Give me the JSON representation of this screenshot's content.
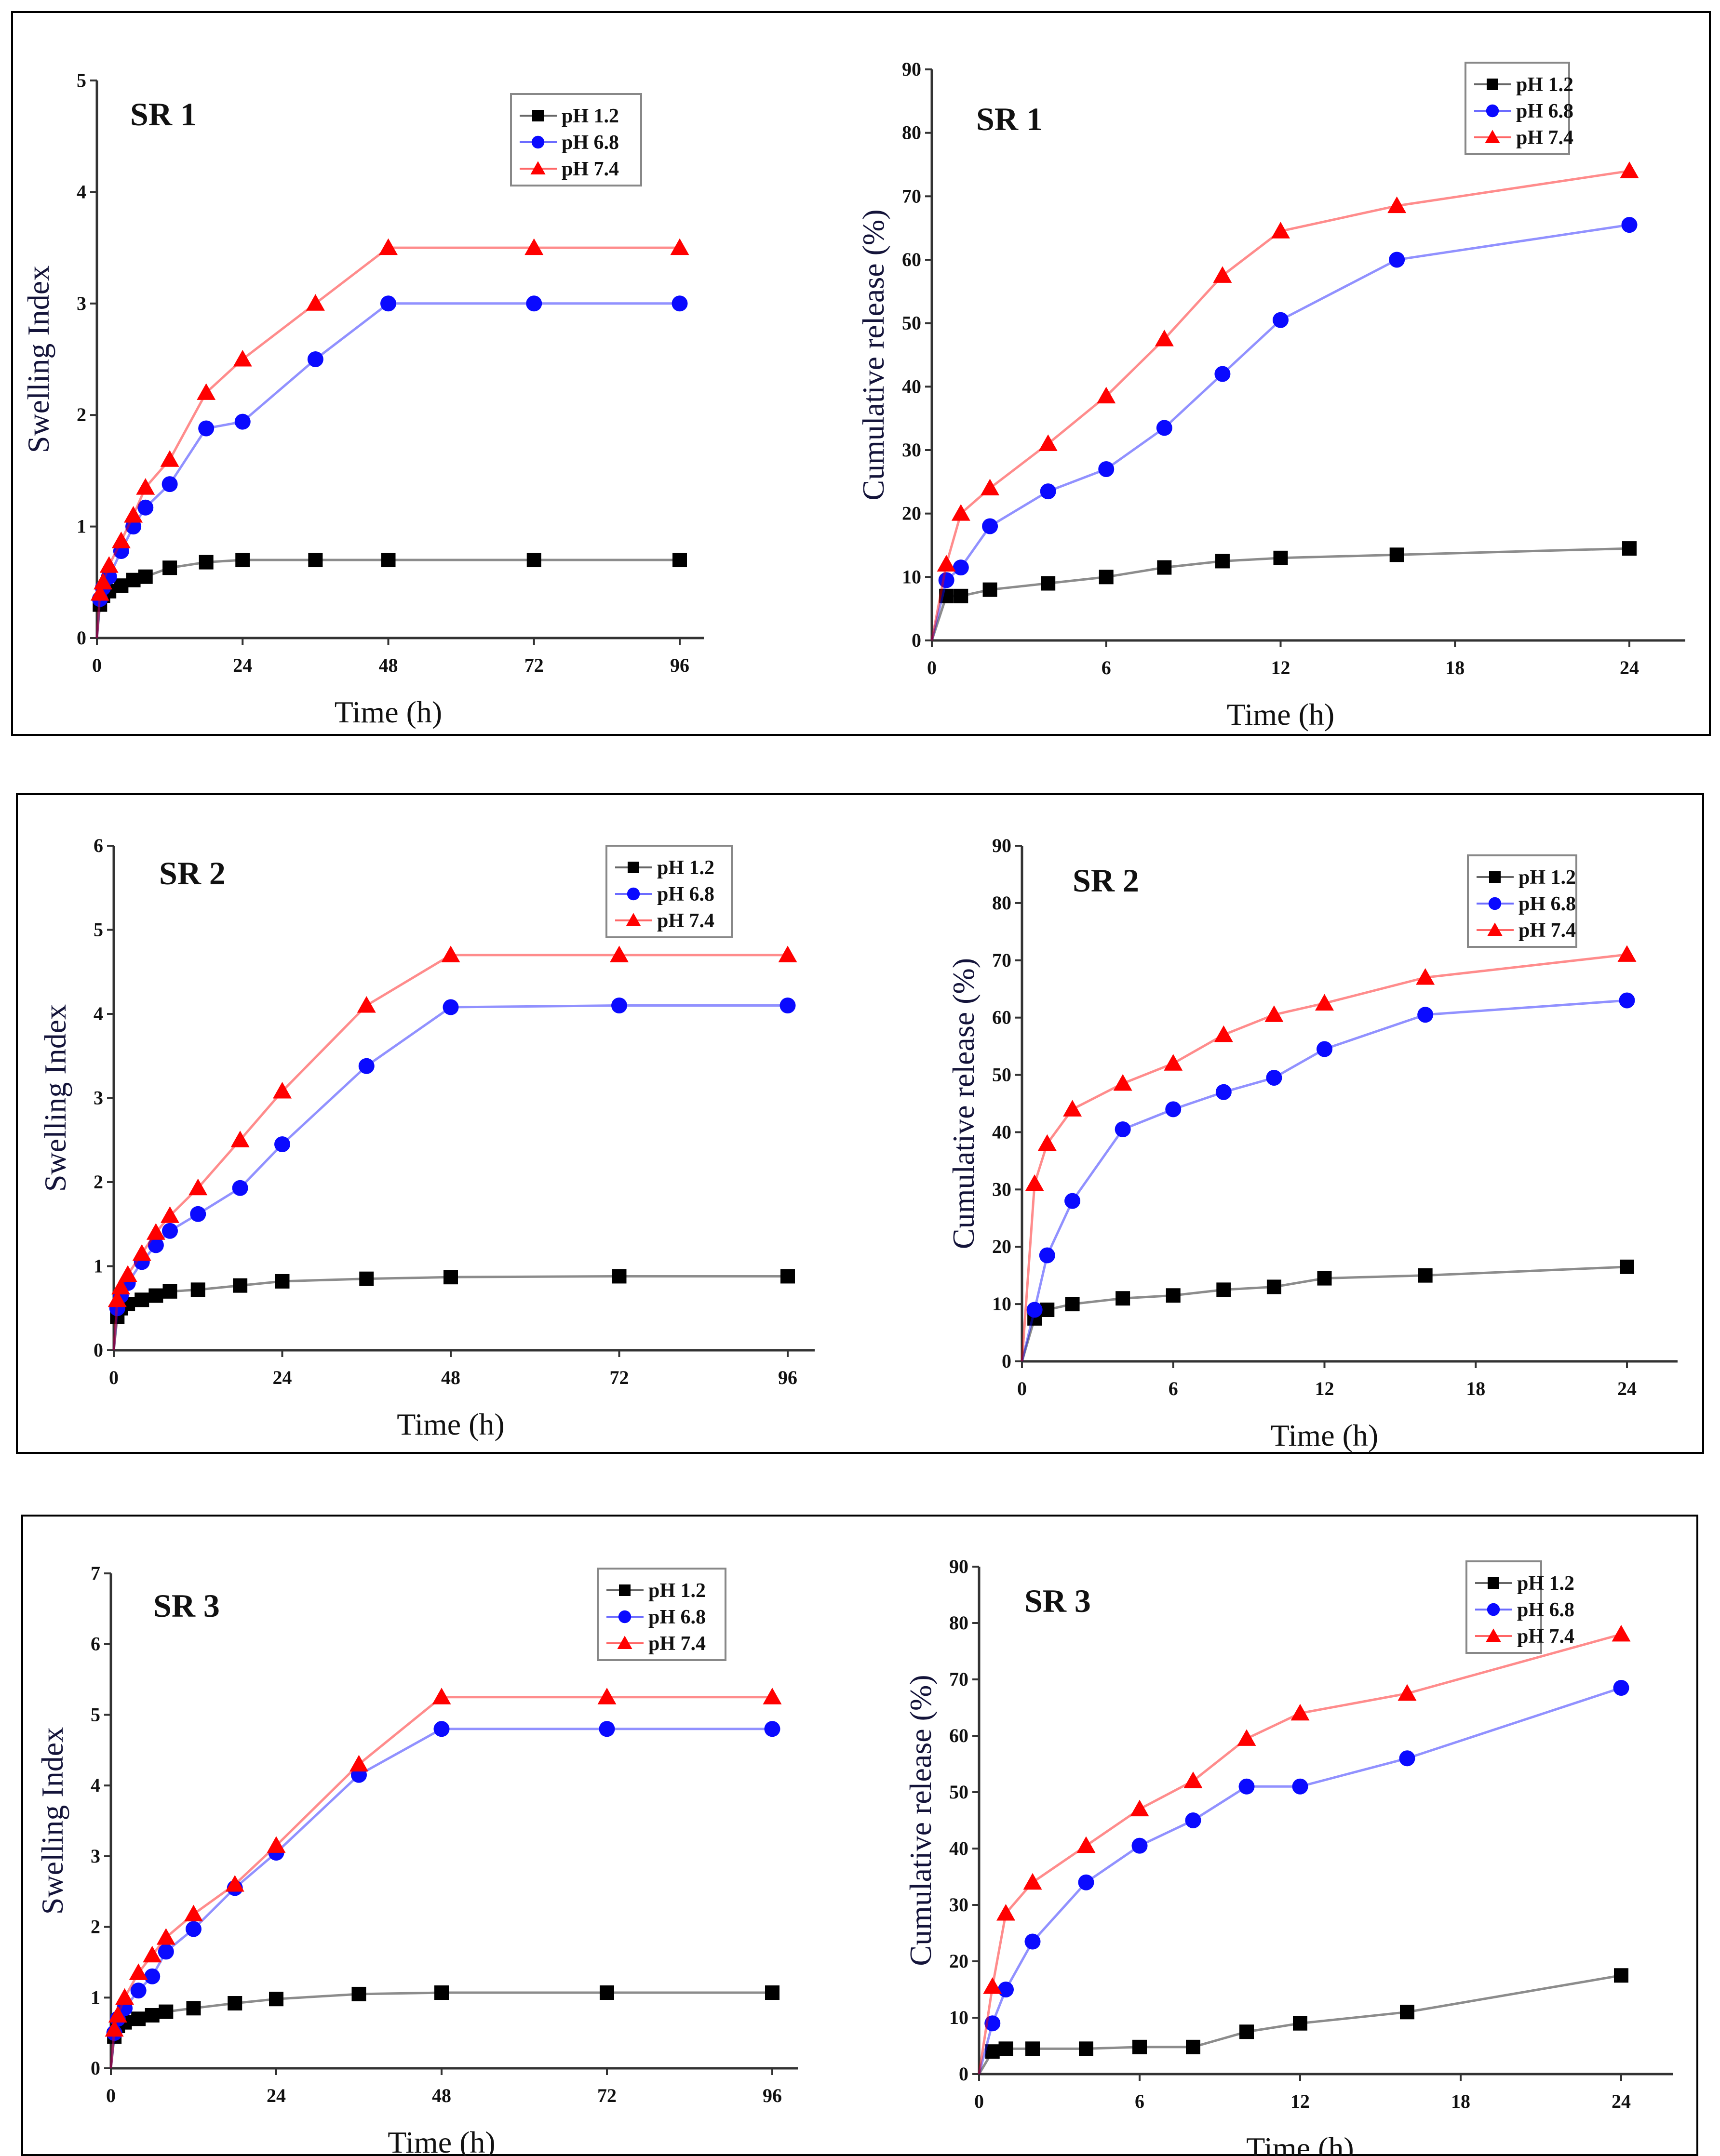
{
  "colors": {
    "pH 1.2": "#000000",
    "pH 6.8": "#0a0aff",
    "pH 7.4": "#ff0000"
  },
  "chart_data": [
    {
      "type": "line",
      "title": "SR 1",
      "xlabel": "Time (h)",
      "ylabel": "Swelling Index",
      "xlim": [
        0,
        96
      ],
      "ylim": [
        0,
        5
      ],
      "xticks": [
        0,
        24,
        48,
        72,
        96
      ],
      "yticks": [
        0,
        1,
        2,
        3,
        4,
        5
      ],
      "legend": "top-right",
      "x": [
        0,
        0.5,
        1,
        2,
        4,
        6,
        8,
        12,
        18,
        24,
        36,
        48,
        72,
        96
      ],
      "series": [
        {
          "name": "pH 1.2",
          "marker": "square",
          "values": [
            0,
            0.3,
            0.38,
            0.42,
            0.47,
            0.52,
            0.55,
            0.63,
            0.68,
            0.7,
            0.7,
            0.7,
            0.7,
            0.7
          ]
        },
        {
          "name": "pH 6.8",
          "marker": "circle",
          "values": [
            0,
            0.35,
            0.45,
            0.55,
            0.78,
            1.0,
            1.17,
            1.38,
            1.88,
            1.94,
            2.5,
            3.0,
            3.0,
            3.0
          ]
        },
        {
          "name": "pH 7.4",
          "marker": "triangle",
          "values": [
            0,
            0.4,
            0.5,
            0.65,
            0.87,
            1.1,
            1.35,
            1.6,
            2.2,
            2.5,
            3.0,
            3.5,
            3.5,
            3.5
          ]
        }
      ]
    },
    {
      "type": "line",
      "title": "SR 1",
      "xlabel": "Time (h)",
      "ylabel": "Cumulative release (%)",
      "xlim": [
        0,
        24
      ],
      "ylim": [
        0,
        90
      ],
      "xticks": [
        0,
        6,
        12,
        18,
        24
      ],
      "yticks": [
        0,
        10,
        20,
        30,
        40,
        50,
        60,
        70,
        80,
        90
      ],
      "legend": "top-right",
      "x": [
        0,
        0.5,
        1,
        2,
        4,
        6,
        8,
        10,
        12,
        16,
        24
      ],
      "series": [
        {
          "name": "pH 1.2",
          "marker": "square",
          "values": [
            0,
            7,
            7,
            8,
            9,
            10,
            11.5,
            12.5,
            13,
            13.5,
            14.5
          ]
        },
        {
          "name": "pH 6.8",
          "marker": "circle",
          "values": [
            0,
            9.5,
            11.5,
            18,
            23.5,
            27,
            33.5,
            42,
            50.5,
            60,
            65.5
          ]
        },
        {
          "name": "pH 7.4",
          "marker": "triangle",
          "values": [
            0,
            12,
            20,
            24,
            31,
            38.5,
            47.5,
            57.5,
            64.5,
            68.5,
            74
          ]
        }
      ]
    },
    {
      "type": "line",
      "title": "SR 2",
      "xlabel": "Time (h)",
      "ylabel": "Swelling Index",
      "xlim": [
        0,
        96
      ],
      "ylim": [
        0,
        6
      ],
      "xticks": [
        0,
        24,
        48,
        72,
        96
      ],
      "yticks": [
        0,
        1,
        2,
        3,
        4,
        5,
        6
      ],
      "legend": "top-right",
      "x": [
        0,
        0.5,
        1,
        2,
        4,
        6,
        8,
        12,
        18,
        24,
        36,
        48,
        72,
        96
      ],
      "series": [
        {
          "name": "pH 1.2",
          "marker": "square",
          "values": [
            0,
            0.4,
            0.5,
            0.55,
            0.6,
            0.65,
            0.7,
            0.72,
            0.77,
            0.82,
            0.85,
            0.87,
            0.88,
            0.88
          ]
        },
        {
          "name": "pH 6.8",
          "marker": "circle",
          "values": [
            0,
            0.5,
            0.65,
            0.8,
            1.05,
            1.25,
            1.42,
            1.62,
            1.93,
            2.45,
            3.38,
            4.08,
            4.1,
            4.1
          ]
        },
        {
          "name": "pH 7.4",
          "marker": "triangle",
          "values": [
            0,
            0.6,
            0.75,
            0.9,
            1.15,
            1.4,
            1.6,
            1.93,
            2.5,
            3.08,
            4.1,
            4.7,
            4.7,
            4.7
          ]
        }
      ]
    },
    {
      "type": "line",
      "title": "SR 2",
      "xlabel": "Time (h)",
      "ylabel": "Cumulative release (%)",
      "xlim": [
        0,
        24
      ],
      "ylim": [
        0,
        90
      ],
      "xticks": [
        0,
        6,
        12,
        18,
        24
      ],
      "yticks": [
        0,
        10,
        20,
        30,
        40,
        50,
        60,
        70,
        80,
        90
      ],
      "legend": "top-right",
      "x": [
        0,
        0.5,
        1,
        2,
        4,
        6,
        8,
        10,
        12,
        16,
        24
      ],
      "series": [
        {
          "name": "pH 1.2",
          "marker": "square",
          "values": [
            0,
            7.5,
            9,
            10,
            11,
            11.5,
            12.5,
            13,
            14.5,
            15,
            16.5
          ]
        },
        {
          "name": "pH 6.8",
          "marker": "circle",
          "values": [
            0,
            9,
            18.5,
            28,
            40.5,
            44,
            47,
            49.5,
            54.5,
            60.5,
            63
          ]
        },
        {
          "name": "pH 7.4",
          "marker": "triangle",
          "values": [
            0,
            31,
            38,
            44,
            48.5,
            52,
            57,
            60.5,
            62.5,
            67,
            71
          ]
        }
      ]
    },
    {
      "type": "line",
      "title": "SR 3",
      "xlabel": "Time (h)",
      "ylabel": "Swelling Index",
      "xlim": [
        0,
        96
      ],
      "ylim": [
        0,
        7
      ],
      "xticks": [
        0,
        24,
        48,
        72,
        96
      ],
      "yticks": [
        0,
        1,
        2,
        3,
        4,
        5,
        6,
        7
      ],
      "legend": "top-right",
      "x": [
        0,
        0.5,
        1,
        2,
        4,
        6,
        8,
        12,
        18,
        24,
        36,
        48,
        72,
        96
      ],
      "series": [
        {
          "name": "pH 1.2",
          "marker": "square",
          "values": [
            0,
            0.45,
            0.6,
            0.65,
            0.7,
            0.75,
            0.8,
            0.85,
            0.92,
            0.98,
            1.05,
            1.07,
            1.07,
            1.07
          ]
        },
        {
          "name": "pH 6.8",
          "marker": "circle",
          "values": [
            0,
            0.5,
            0.7,
            0.85,
            1.1,
            1.3,
            1.65,
            1.97,
            2.55,
            3.05,
            4.15,
            4.8,
            4.8,
            4.8
          ]
        },
        {
          "name": "pH 7.4",
          "marker": "triangle",
          "values": [
            0,
            0.55,
            0.75,
            1.0,
            1.35,
            1.6,
            1.85,
            2.18,
            2.6,
            3.15,
            4.3,
            5.25,
            5.25,
            5.25
          ]
        }
      ]
    },
    {
      "type": "line",
      "title": "SR 3",
      "xlabel": "Time (h)",
      "ylabel": "Cumulative release (%)",
      "xlim": [
        0,
        24
      ],
      "ylim": [
        0,
        90
      ],
      "xticks": [
        0,
        6,
        12,
        18,
        24
      ],
      "yticks": [
        0,
        10,
        20,
        30,
        40,
        50,
        60,
        70,
        80,
        90
      ],
      "legend": "top-right",
      "x": [
        0,
        0.5,
        1,
        2,
        4,
        6,
        8,
        10,
        12,
        16,
        24
      ],
      "series": [
        {
          "name": "pH 1.2",
          "marker": "square",
          "values": [
            0,
            4,
            4.5,
            4.5,
            4.5,
            4.8,
            4.8,
            7.5,
            9,
            11,
            17.5
          ]
        },
        {
          "name": "pH 6.8",
          "marker": "circle",
          "values": [
            0,
            9,
            15,
            23.5,
            34,
            40.5,
            45,
            51,
            51,
            56,
            68.5
          ]
        },
        {
          "name": "pH 7.4",
          "marker": "triangle",
          "values": [
            0,
            15.5,
            28.5,
            34,
            40.5,
            47,
            52,
            59.5,
            64,
            67.5,
            78
          ]
        }
      ]
    }
  ]
}
